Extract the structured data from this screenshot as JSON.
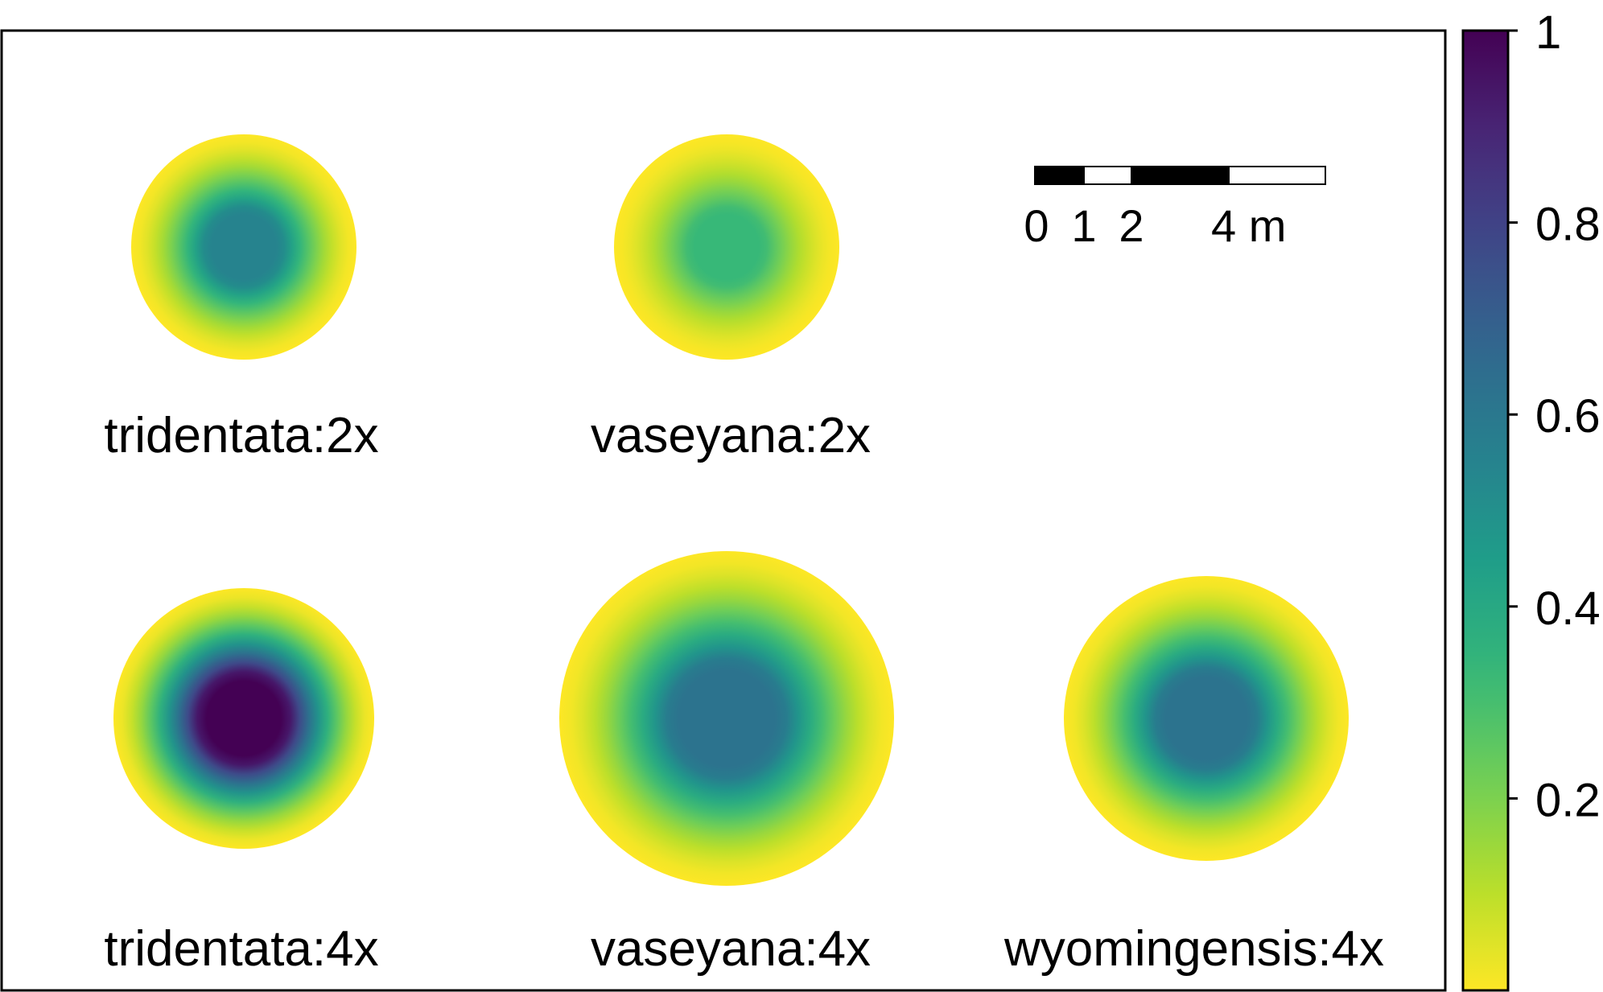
{
  "chart_data": {
    "type": "heatmap",
    "colormap": "viridis (reversed)",
    "colorbar": {
      "range": [
        0,
        1
      ],
      "ticks": [
        "0.2",
        "0.4",
        "0.6",
        "0.8",
        "1"
      ],
      "colors": [
        "#fde725",
        "#b5de2b",
        "#6ece58",
        "#35b779",
        "#1f9e89",
        "#26828e",
        "#31688e",
        "#3e4989",
        "#482878",
        "#440154"
      ]
    },
    "panels": [
      {
        "label": "tridentata:2x",
        "center_value": 0.55
      },
      {
        "label": "vaseyana:2x",
        "center_value": 0.33
      },
      {
        "label": "tridentata:4x",
        "center_value": 1.0
      },
      {
        "label": "vaseyana:4x",
        "center_value": 0.62
      },
      {
        "label": "wyomingensis:4x",
        "center_value": 0.62
      }
    ],
    "scale_bar": {
      "labels": [
        "0",
        "1",
        "2",
        "4 m"
      ]
    }
  }
}
